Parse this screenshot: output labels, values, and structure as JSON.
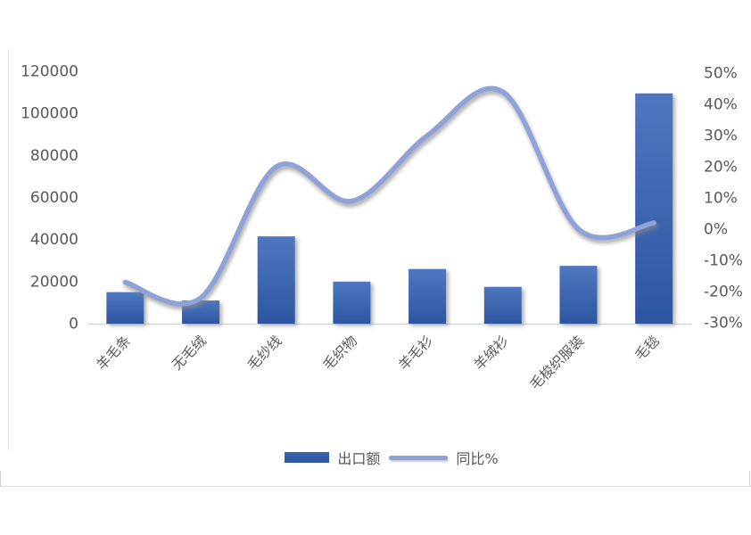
{
  "chart_data": {
    "type": "bar",
    "subtype": "combo-bar-line",
    "title": "",
    "categories": [
      "羊毛条",
      "无毛绒",
      "毛纱线",
      "毛织物",
      "羊毛衫",
      "羊绒衫",
      "毛梭织服装",
      "毛毯"
    ],
    "series": [
      {
        "name": "出口额",
        "type": "bar",
        "axis": "left",
        "values": [
          15000,
          11000,
          41500,
          20000,
          26000,
          17500,
          27500,
          109500
        ]
      },
      {
        "name": "同比%",
        "type": "line",
        "axis": "right",
        "smooth": true,
        "values": [
          -17,
          -22,
          20,
          9,
          30,
          44,
          0,
          2
        ]
      }
    ],
    "left_axis": {
      "min": 0,
      "max": 120000,
      "step": 20000,
      "tick_labels": [
        "120000",
        "100000",
        "80000",
        "60000",
        "40000",
        "20000",
        "0"
      ]
    },
    "right_axis": {
      "min": -30,
      "max": 50,
      "step": 10,
      "unit": "%",
      "tick_labels": [
        "50%",
        "40%",
        "30%",
        "20%",
        "10%",
        "0%",
        "-10%",
        "-20%",
        "-30%"
      ]
    },
    "legend": {
      "position": "bottom",
      "entries": [
        "出口额",
        "同比%"
      ]
    },
    "grid": false,
    "xlabel": "",
    "ylabel": ""
  },
  "colors": {
    "bar_fill": "#2e59a8",
    "bar_gradient_top": "#4f77c0",
    "bar_gradient_bottom": "#2d56a1",
    "line_stroke": "#8fa2d8",
    "axis_text": "#595959",
    "axis_line": "#d6d6d6"
  }
}
